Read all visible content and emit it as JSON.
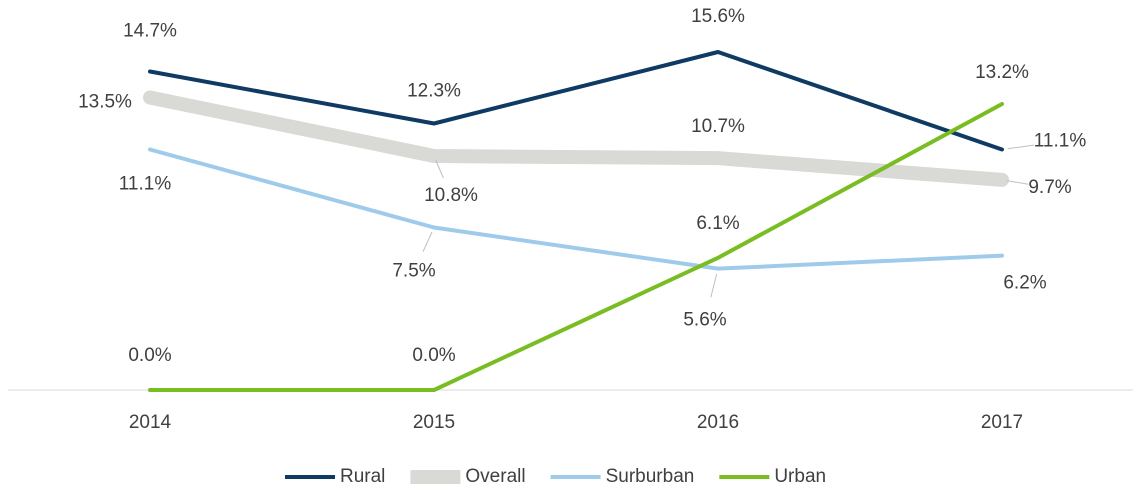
{
  "chart_data": {
    "type": "line",
    "categories": [
      "2014",
      "2015",
      "2016",
      "2017"
    ],
    "series": [
      {
        "name": "Rural",
        "color": "#0e3a64",
        "values": [
          14.7,
          12.3,
          15.6,
          11.1
        ],
        "value_labels": [
          "14.7%",
          "12.3%",
          "15.6%",
          "11.1%"
        ]
      },
      {
        "name": "Overall",
        "color": "#d9d9d5",
        "values": [
          13.5,
          10.8,
          10.7,
          9.7
        ],
        "value_labels": [
          "13.5%",
          "10.8%",
          "10.7%",
          "9.7%"
        ]
      },
      {
        "name": "Surburban",
        "color": "#9fcbeb",
        "values": [
          11.1,
          7.5,
          5.6,
          6.2
        ],
        "value_labels": [
          "11.1%",
          "7.5%",
          "5.6%",
          "6.2%"
        ]
      },
      {
        "name": "Urban",
        "color": "#7abd22",
        "values": [
          0.0,
          0.0,
          6.1,
          13.2
        ],
        "value_labels": [
          "0.0%",
          "0.0%",
          "6.1%",
          "13.2%"
        ]
      }
    ],
    "ylim": [
      0,
      18
    ],
    "legend": "bottom"
  }
}
